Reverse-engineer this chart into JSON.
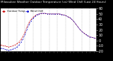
{
  "title": "Milwaukee Weather Outdoor Temperature (vs) Wind Chill (Last 24 Hours)",
  "bg_color": "#000000",
  "plot_bg_color": "#ffffff",
  "grid_color": "#888888",
  "temp_color": "#cc0000",
  "windchill_color": "#0000cc",
  "ylim": [
    -20,
    60
  ],
  "yticks": [
    60,
    50,
    40,
    30,
    20,
    10,
    0,
    -10,
    -20
  ],
  "ytick_labels": [
    "60",
    "50",
    "40",
    "30",
    "20",
    "10",
    "0",
    "-10",
    "-20"
  ],
  "num_points": 48,
  "temp_data": [
    -8,
    -9,
    -10,
    -11,
    -12,
    -11,
    -10,
    -8,
    -6,
    -3,
    2,
    8,
    16,
    26,
    34,
    40,
    44,
    47,
    49,
    50,
    51,
    51,
    51,
    50,
    50,
    50,
    50,
    50,
    50,
    50,
    49,
    48,
    47,
    45,
    43,
    40,
    36,
    31,
    26,
    21,
    17,
    14,
    11,
    9,
    7,
    6,
    5,
    4
  ],
  "windchill_data": [
    -14,
    -15,
    -16,
    -17,
    -18,
    -17,
    -16,
    -14,
    -12,
    -8,
    -3,
    3,
    11,
    21,
    30,
    37,
    42,
    46,
    49,
    50,
    51,
    51,
    51,
    50,
    50,
    50,
    50,
    50,
    50,
    50,
    49,
    48,
    47,
    45,
    43,
    40,
    36,
    31,
    26,
    21,
    17,
    14,
    11,
    9,
    7,
    6,
    5,
    4
  ],
  "legend_temp": "Outdoor Temp",
  "legend_wc": "Wind Chill",
  "title_fontsize": 3.0,
  "tick_fontsize": 3.5
}
